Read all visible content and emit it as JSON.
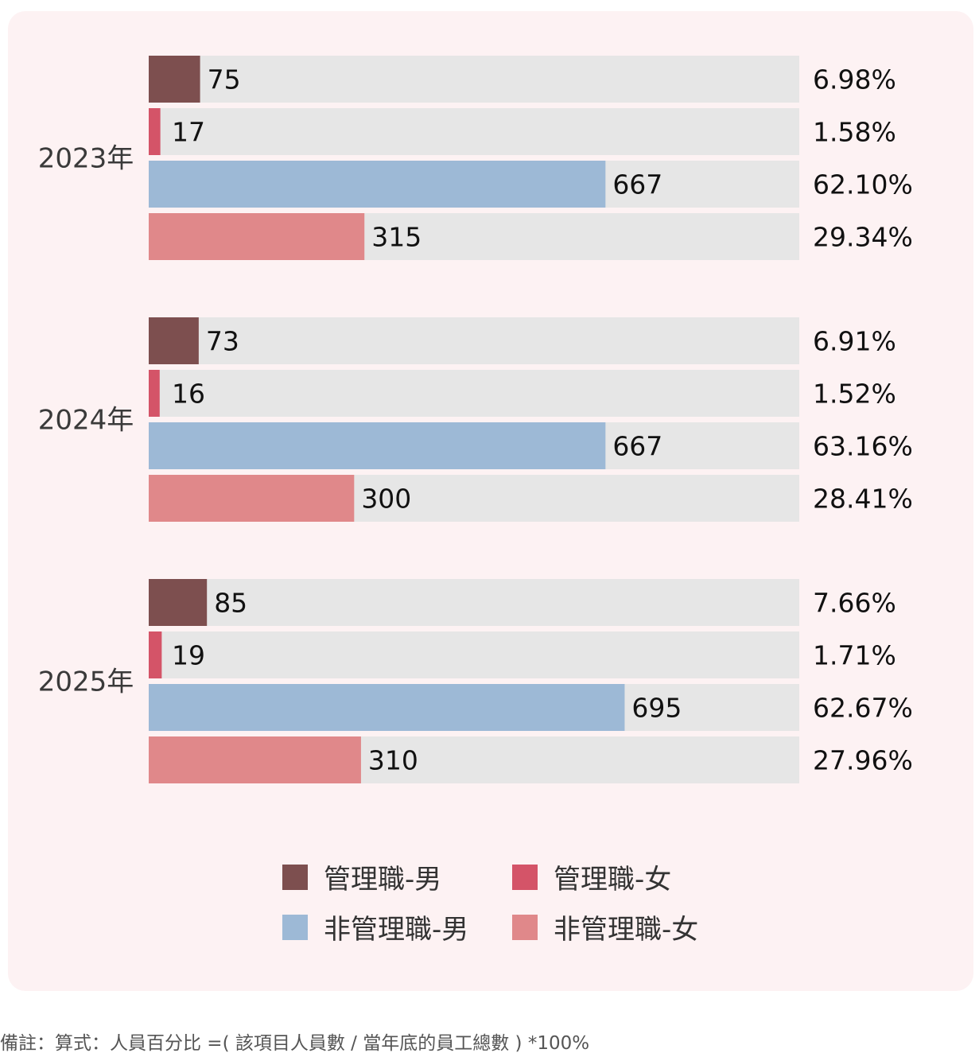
{
  "chart_data": {
    "type": "bar",
    "orientation": "horizontal",
    "groups": [
      "2023年",
      "2024年",
      "2025年"
    ],
    "series": [
      {
        "name": "管理職-男",
        "color": "#7d4f4f",
        "values": [
          75,
          73,
          85
        ],
        "percent_labels": [
          "6.98%",
          "6.91%",
          "7.66%"
        ]
      },
      {
        "name": "管理職-女",
        "color": "#d45468",
        "values": [
          17,
          16,
          19
        ],
        "percent_labels": [
          "1.58%",
          "1.52%",
          "1.71%"
        ]
      },
      {
        "name": "非管理職-男",
        "color": "#9db9d6",
        "values": [
          667,
          667,
          695
        ],
        "percent_labels": [
          "62.10%",
          "63.16%",
          "62.67%"
        ]
      },
      {
        "name": "非管理職-女",
        "color": "#e0888a",
        "values": [
          315,
          300,
          310
        ],
        "percent_labels": [
          "29.34%",
          "28.41%",
          "27.96%"
        ]
      }
    ],
    "xlim": [
      0,
      950
    ],
    "track_color": "#e6e6e6",
    "legend_position": "bottom"
  },
  "footnote": "備註：算式：人員百分比 =( 該項目人員數 / 當年底的員工總數 ) *100%"
}
